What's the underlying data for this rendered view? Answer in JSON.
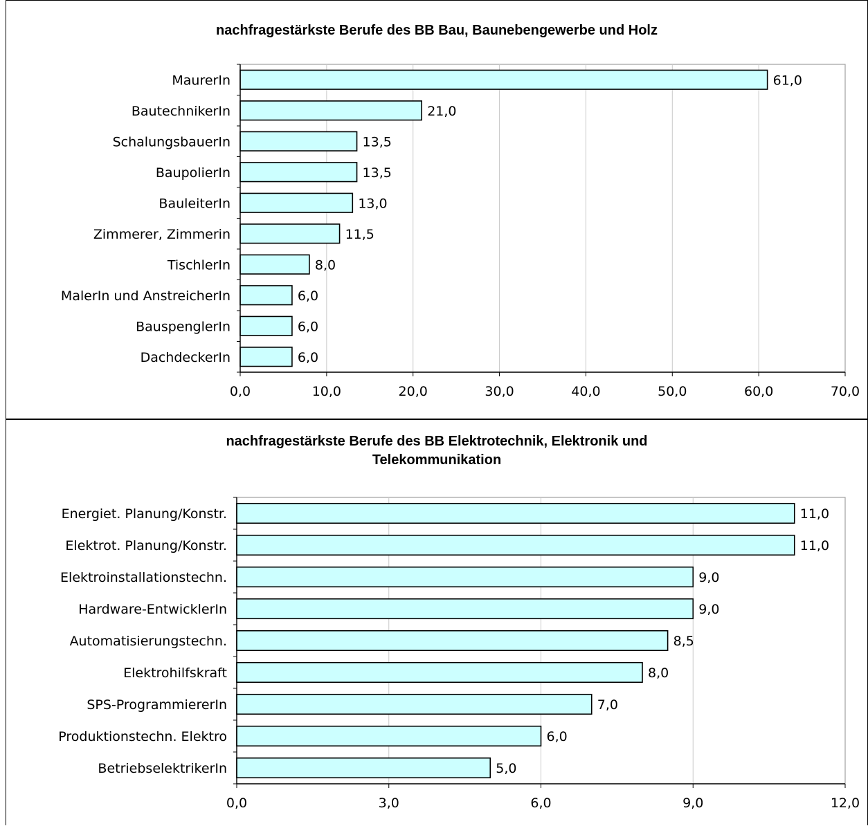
{
  "chart_data": [
    {
      "type": "bar",
      "orientation": "horizontal",
      "title": "nachfragestärkste Berufe des BB Bau, Baunebengewerbe und Holz",
      "categories": [
        "MaurerIn",
        "BautechnikerIn",
        "SchalungsbauerIn",
        "BaupolierIn",
        "BauleiterIn",
        "Zimmerer, Zimmerin",
        "TischlerIn",
        "MalerIn und AnstreicherIn",
        "BauspenglerIn",
        "DachdeckerIn"
      ],
      "values": [
        61.0,
        21.0,
        13.5,
        13.5,
        13.0,
        11.5,
        8.0,
        6.0,
        6.0,
        6.0
      ],
      "value_labels": [
        "61,0",
        "21,0",
        "13,5",
        "13,5",
        "13,0",
        "11,5",
        "8,0",
        "6,0",
        "6,0",
        "6,0"
      ],
      "xlim": [
        0,
        70
      ],
      "xticks": [
        "0,0",
        "10,0",
        "20,0",
        "30,0",
        "40,0",
        "50,0",
        "60,0",
        "70,0"
      ],
      "grid": true,
      "legend": "none",
      "bar_color": "#ccffff",
      "bar_edge_color": "#000000"
    },
    {
      "type": "bar",
      "orientation": "horizontal",
      "title": "nachfragestärkste Berufe des BB Elektrotechnik, Elektronik und Telekommunikation",
      "categories": [
        "Energiet. Planung/Konstr.",
        "Elektrot. Planung/Konstr.",
        "Elektroinstallationstechn.",
        "Hardware-EntwicklerIn",
        "Automatisierungstechn.",
        "Elektrohilfskraft",
        "SPS-ProgrammiererIn",
        "Produktionstechn. Elektro",
        "BetriebselektrikerIn"
      ],
      "values": [
        11.0,
        11.0,
        9.0,
        9.0,
        8.5,
        8.0,
        7.0,
        6.0,
        5.0
      ],
      "value_labels": [
        "11,0",
        "11,0",
        "9,0",
        "9,0",
        "8,5",
        "8,0",
        "7,0",
        "6,0",
        "5,0"
      ],
      "xlim": [
        0,
        12
      ],
      "xticks": [
        "0,0",
        "3,0",
        "6,0",
        "9,0",
        "12,0"
      ],
      "grid": true,
      "legend": "none",
      "bar_color": "#ccffff",
      "bar_edge_color": "#000000"
    }
  ]
}
